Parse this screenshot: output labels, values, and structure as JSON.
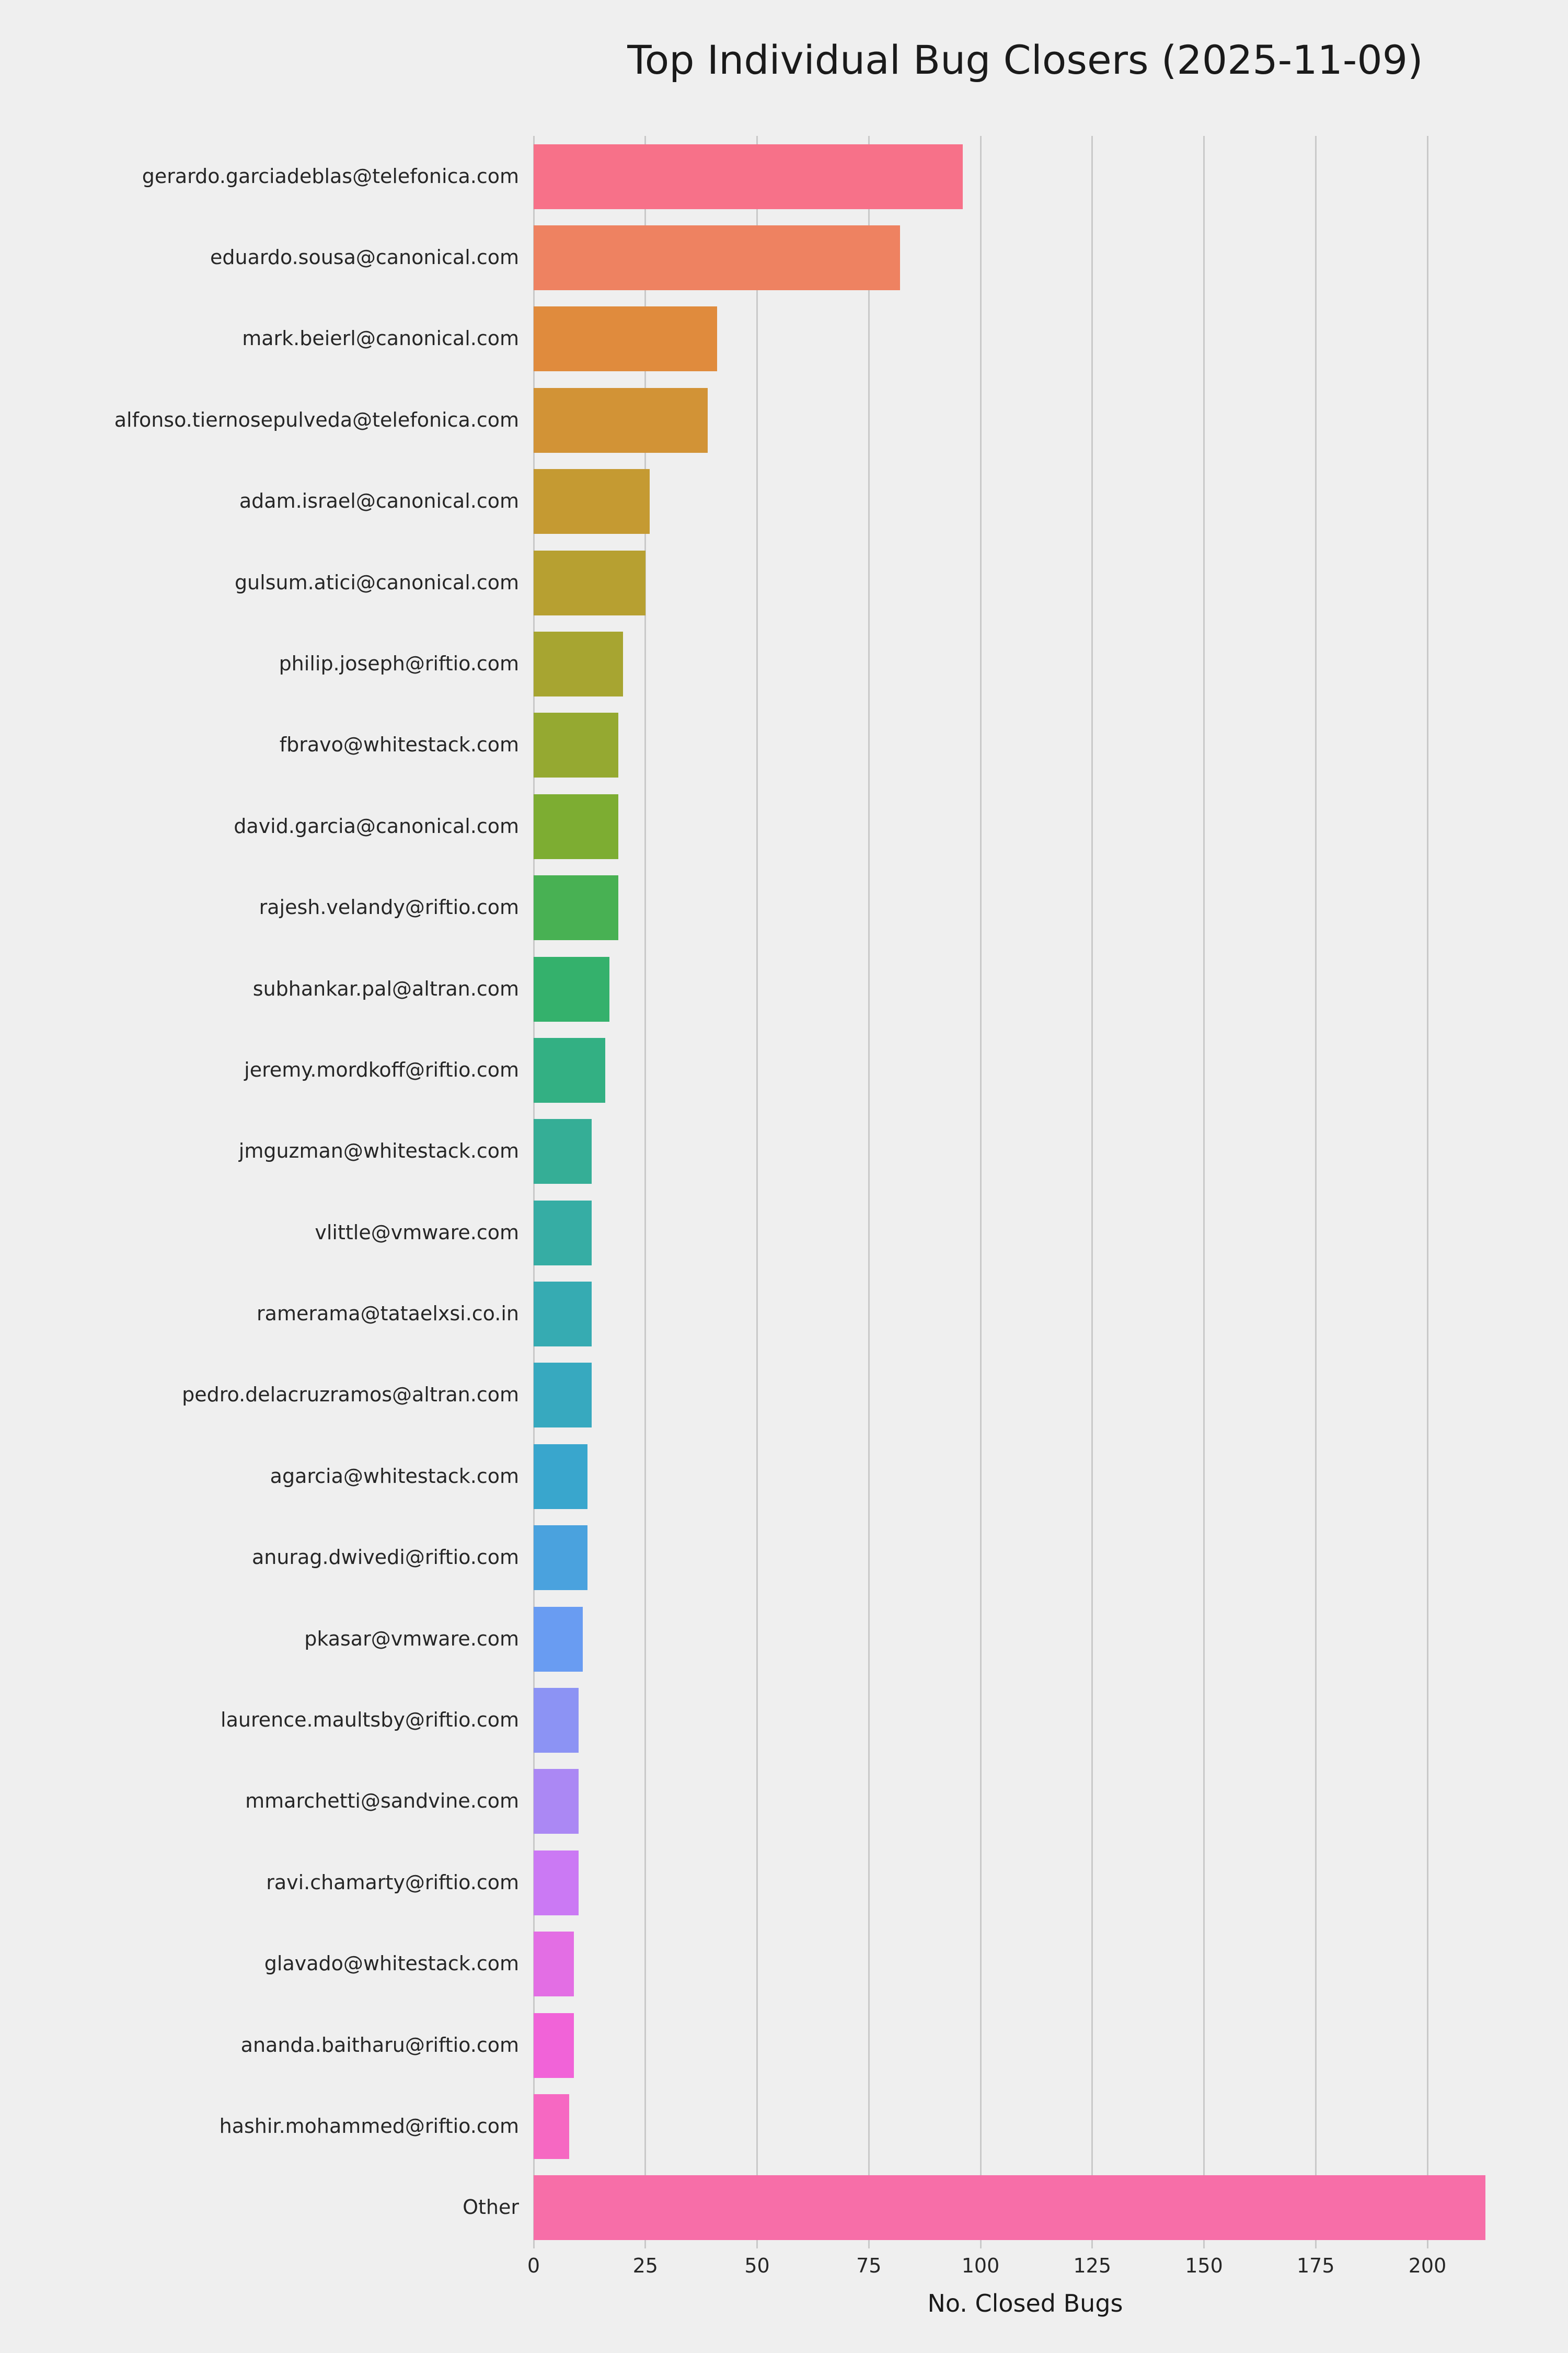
{
  "title": "Top Individual Bug Closers (2025-11-09)",
  "chart_data": {
    "type": "bar",
    "orientation": "horizontal",
    "title": "Top Individual Bug Closers (2025-11-09)",
    "xlabel": "No. Closed Bugs",
    "ylabel": "",
    "categories": [
      "gerardo.garciadeblas@telefonica.com",
      "eduardo.sousa@canonical.com",
      "mark.beierl@canonical.com",
      "alfonso.tiernosepulveda@telefonica.com",
      "adam.israel@canonical.com",
      "gulsum.atici@canonical.com",
      "philip.joseph@riftio.com",
      "fbravo@whitestack.com",
      "david.garcia@canonical.com",
      "rajesh.velandy@riftio.com",
      "subhankar.pal@altran.com",
      "jeremy.mordkoff@riftio.com",
      "jmguzman@whitestack.com",
      "vlittle@vmware.com",
      "ramerama@tataelxsi.co.in",
      "pedro.delacruzramos@altran.com",
      "agarcia@whitestack.com",
      "anurag.dwivedi@riftio.com",
      "pkasar@vmware.com",
      "laurence.maultsby@riftio.com",
      "mmarchetti@sandvine.com",
      "ravi.chamarty@riftio.com",
      "glavado@whitestack.com",
      "ananda.baitharu@riftio.com",
      "hashir.mohammed@riftio.com",
      "Other"
    ],
    "values": [
      96,
      82,
      41,
      39,
      26,
      25,
      20,
      19,
      19,
      19,
      17,
      16,
      13,
      13,
      13,
      13,
      12,
      12,
      11,
      10,
      10,
      10,
      9,
      9,
      8,
      213
    ],
    "xticks": [
      0,
      25,
      50,
      75,
      100,
      125,
      150,
      175,
      200
    ],
    "xlim": [
      0,
      220
    ],
    "grid": true,
    "legend": "none",
    "background_color": "#efefef",
    "grid_color": "#c9c9c9",
    "bar_colors": [
      "#f77189",
      "#ee8261",
      "#e08b3d",
      "#d29336",
      "#c59a32",
      "#b7a031",
      "#a7a531",
      "#95a931",
      "#7dad32",
      "#48b153",
      "#34b16c",
      "#33b083",
      "#35ae96",
      "#36ada4",
      "#36abb2",
      "#37a9bf",
      "#39a6cd",
      "#4aa2de",
      "#699cf2",
      "#8c93f4",
      "#ab88f4",
      "#cb79f4",
      "#e36ee4",
      "#f163d8",
      "#f668c2",
      "#f76ea8"
    ]
  }
}
